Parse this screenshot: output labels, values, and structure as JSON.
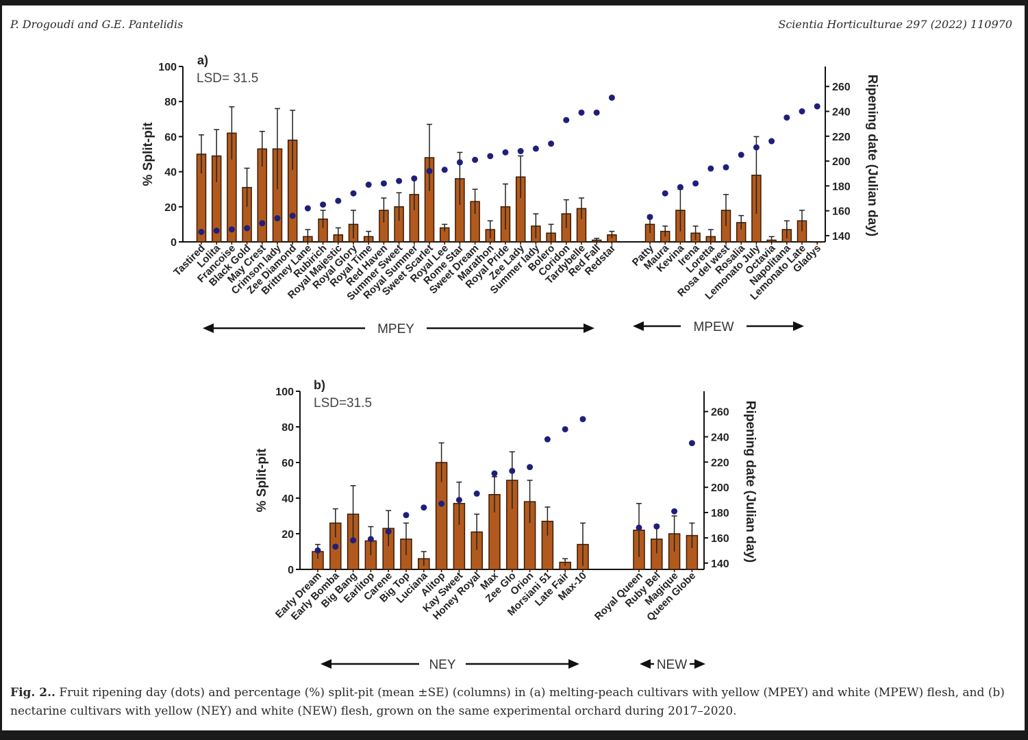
{
  "header": {
    "left": "P. Drogoudi and G.E. Pantelidis",
    "right": "Scientia Horticulturae 297 (2022) 110970"
  },
  "caption": {
    "label": "Fig. 2..",
    "text": "Fruit ripening day (dots) and percentage (%) split-pit (mean ±SE) (columns) in (a) melting-peach cultivars with yellow (MPEY) and white (MPEW) flesh, and (b) nectarine cultivars with yellow (NEY) and white (NEW) flesh, grown on the same experimental orchard during 2017–2020."
  },
  "colors": {
    "bar": "#b25a1d",
    "bar_edge": "#3a1a05",
    "dot": "#1f1f7a",
    "axis": "#111111"
  },
  "chart_data": [
    {
      "type": "bar",
      "panel": "a)",
      "lsd": "LSD= 31.5",
      "ylabel": "% Split-pit",
      "y2label": "Ripening date (Julian day)",
      "ylim": [
        0,
        100
      ],
      "y2lim": [
        135,
        275
      ],
      "yticks": [
        0,
        20,
        40,
        60,
        80,
        100
      ],
      "y2ticks": [
        140,
        160,
        180,
        200,
        220,
        240,
        260
      ],
      "groups": [
        {
          "name": "MPEY",
          "categories": [
            "Tastired",
            "Lolita",
            "Francoise",
            "Black Gold",
            "May Crest",
            "Crimson lady",
            "Zee Diamond",
            "Brittney Lane",
            "Rubirich",
            "Royal Majestic",
            "Royal Glory",
            "Royal Time",
            "Red Haven",
            "Summer Sweet",
            "Royal Summer",
            "Sweet Scarlet",
            "Royal Lee",
            "Rome Star",
            "Sweet Dream",
            "Marathon",
            "Royal Pride",
            "Zee Lady",
            "Summer lady",
            "Bolero",
            "Coridon",
            "Tardybelle",
            "Red Fall",
            "Redstar"
          ],
          "split_pit": [
            50,
            49,
            62,
            31,
            53,
            53,
            58,
            3,
            13,
            4,
            10,
            3,
            18,
            20,
            27,
            48,
            8,
            36,
            23,
            7,
            20,
            37,
            9,
            5,
            16,
            19,
            1,
            4
          ],
          "se": [
            11,
            15,
            15,
            11,
            10,
            23,
            17,
            4,
            5,
            4,
            8,
            3,
            7,
            8,
            9,
            19,
            2,
            15,
            7,
            5,
            13,
            12,
            7,
            5,
            8,
            6,
            1,
            2
          ],
          "ripening_day": [
            143,
            144,
            145,
            146,
            150,
            154,
            156,
            162,
            165,
            168,
            174,
            181,
            182,
            184,
            186,
            192,
            193,
            199,
            201,
            204,
            207,
            208,
            210,
            214,
            233,
            239,
            239,
            251
          ]
        },
        {
          "name": "MPEW",
          "categories": [
            "Patty",
            "Maura",
            "Kevina",
            "Irena",
            "Loretta",
            "Rosa del west",
            "Rosalia",
            "Lemonato July",
            "Octavia",
            "Napolitana",
            "Lemonato Late",
            "Gladys"
          ],
          "split_pit": [
            10,
            6,
            18,
            5,
            3,
            18,
            11,
            38,
            1,
            7,
            12,
            0
          ],
          "se": [
            5,
            3,
            12,
            4,
            4,
            9,
            4,
            22,
            2,
            5,
            6,
            0
          ],
          "ripening_day": [
            155,
            174,
            179,
            182,
            194,
            195,
            205,
            211,
            216,
            235,
            240,
            244
          ]
        }
      ]
    },
    {
      "type": "bar",
      "panel": "b)",
      "lsd": "LSD=31.5",
      "ylabel": "% Split-pit",
      "y2label": "Ripening date (Julian day)",
      "ylim": [
        0,
        100
      ],
      "y2lim": [
        135,
        275
      ],
      "yticks": [
        0,
        20,
        40,
        60,
        80,
        100
      ],
      "y2ticks": [
        140,
        160,
        180,
        200,
        220,
        240,
        260
      ],
      "groups": [
        {
          "name": "NEY",
          "categories": [
            "Early Dream",
            "Early Bomba",
            "Big Bang",
            "Earlitop",
            "Carene",
            "Big Top",
            "Luciana",
            "Alitop",
            "Kay Sweet",
            "Honey Royal",
            "Max",
            "Zee Glo",
            "Orion",
            "Morsiani 51",
            "Late Fair",
            "Max-10"
          ],
          "split_pit": [
            10,
            26,
            31,
            16,
            23,
            17,
            6,
            60,
            37,
            21,
            42,
            50,
            38,
            27,
            4,
            14
          ],
          "se": [
            4,
            8,
            16,
            8,
            10,
            9,
            4,
            11,
            12,
            10,
            10,
            16,
            12,
            8,
            2,
            12
          ],
          "ripening_day": [
            150,
            153,
            158,
            159,
            165,
            178,
            184,
            187,
            190,
            195,
            211,
            213,
            216,
            238,
            246,
            254
          ]
        },
        {
          "name": "NEW",
          "categories": [
            "Royal Queen",
            "Ruby Bel",
            "Magique",
            "Queen Globe"
          ],
          "split_pit": [
            22,
            17,
            20,
            19
          ],
          "se": [
            15,
            8,
            10,
            7
          ],
          "ripening_day": [
            168,
            169,
            181,
            235
          ]
        }
      ]
    }
  ]
}
